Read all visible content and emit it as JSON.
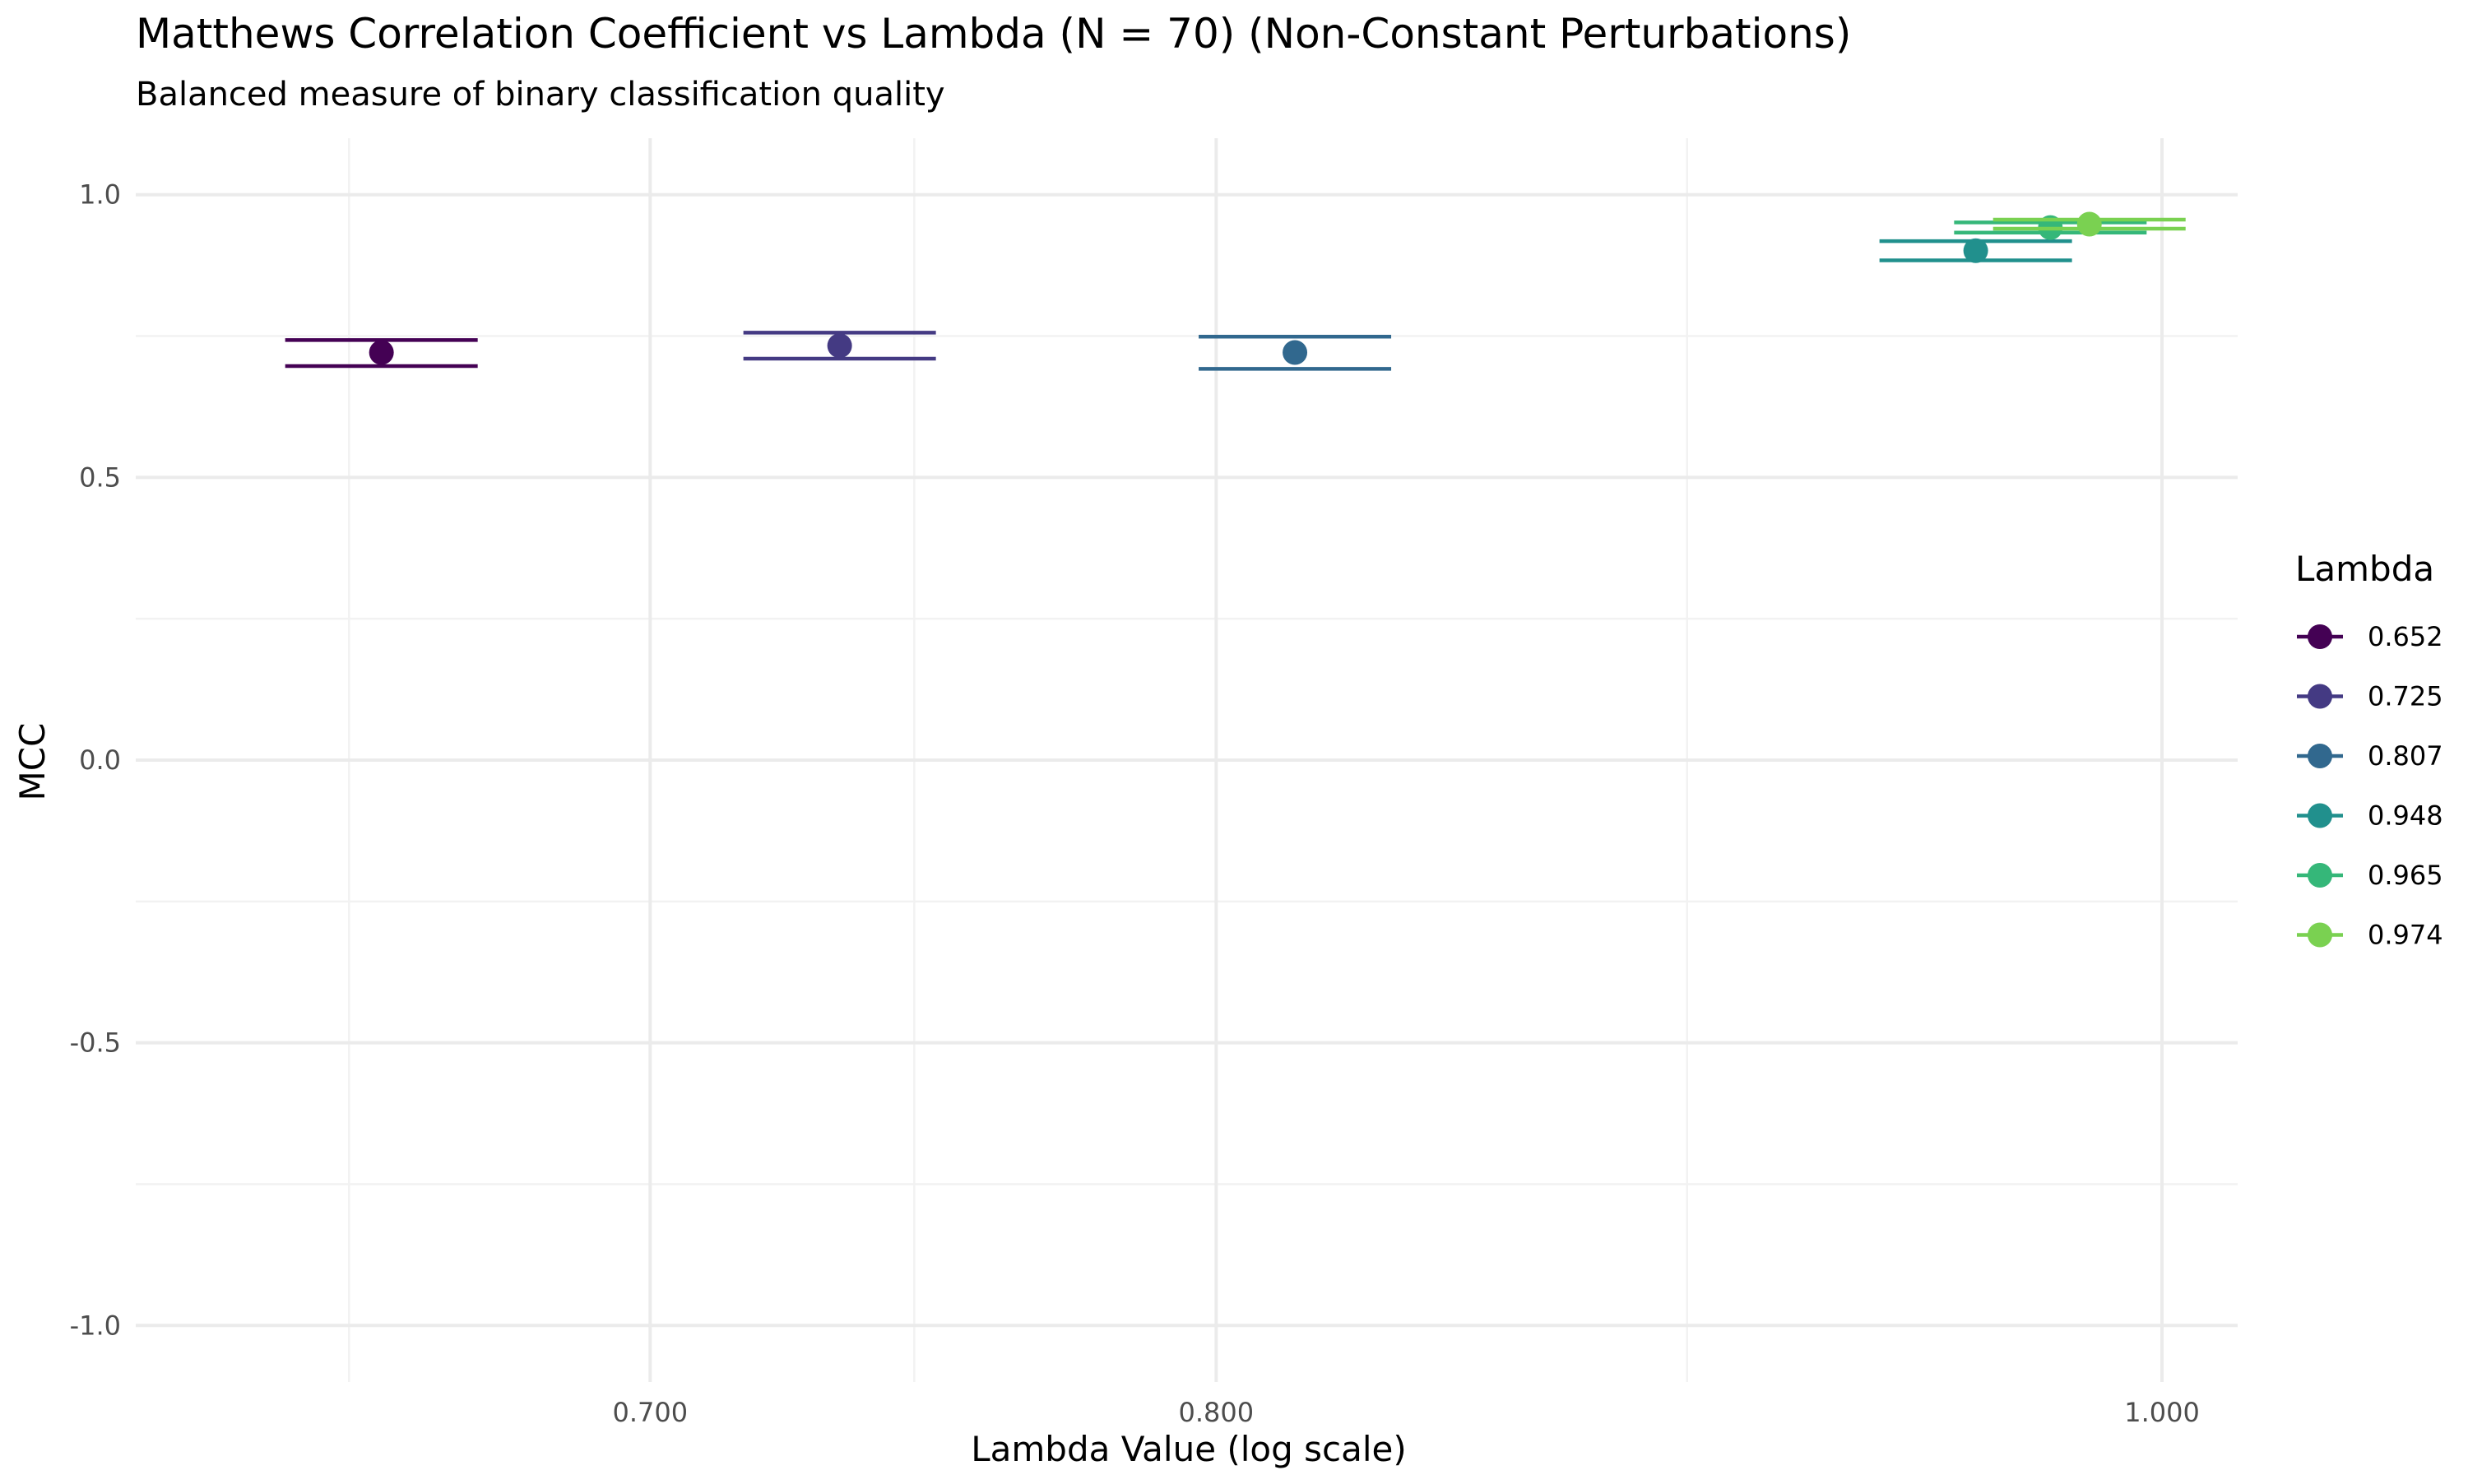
{
  "chart_data": {
    "type": "scatter",
    "title": "Matthews Correlation Coefficient vs Lambda (N = 70) (Non-Constant Perturbations)",
    "subtitle": "Balanced measure of binary classification quality",
    "xlabel": "Lambda Value (log scale)",
    "ylabel": "MCC",
    "x_scale": "log",
    "xlim": [
      0.62,
      1.018
    ],
    "ylim": [
      -1.1,
      1.1
    ],
    "x_ticks": [
      0.7,
      0.8,
      1.0
    ],
    "x_tick_labels": [
      "0.700",
      "0.800",
      "1.000"
    ],
    "x_minor_ticks": [
      0.652,
      0.745,
      0.894
    ],
    "y_ticks": [
      1.0,
      0.5,
      0.0,
      -0.5,
      -1.0
    ],
    "y_tick_labels": [
      "1.0",
      "0.5",
      "0.0",
      "-0.5",
      "-1.0"
    ],
    "y_minor_ticks": [
      0.75,
      0.25,
      -0.25,
      -0.75
    ],
    "grid": true,
    "legend": {
      "title": "Lambda",
      "position": "right"
    },
    "series": [
      {
        "name": "0.652",
        "lambda": 0.652,
        "x": 0.657,
        "y": 0.721,
        "y_upper": 0.743,
        "y_lower": 0.697,
        "color": "#440154"
      },
      {
        "name": "0.725",
        "lambda": 0.725,
        "x": 0.732,
        "y": 0.733,
        "y_upper": 0.756,
        "y_lower": 0.71,
        "color": "#443a83"
      },
      {
        "name": "0.807",
        "lambda": 0.807,
        "x": 0.815,
        "y": 0.721,
        "y_upper": 0.749,
        "y_lower": 0.692,
        "color": "#31688e"
      },
      {
        "name": "0.948",
        "lambda": 0.948,
        "x": 0.957,
        "y": 0.901,
        "y_upper": 0.918,
        "y_lower": 0.884,
        "color": "#21908d"
      },
      {
        "name": "0.965",
        "lambda": 0.965,
        "x": 0.974,
        "y": 0.942,
        "y_upper": 0.951,
        "y_lower": 0.933,
        "color": "#35b779"
      },
      {
        "name": "0.974",
        "lambda": 0.974,
        "x": 0.983,
        "y": 0.948,
        "y_upper": 0.956,
        "y_lower": 0.94,
        "color": "#7ad151"
      }
    ]
  }
}
